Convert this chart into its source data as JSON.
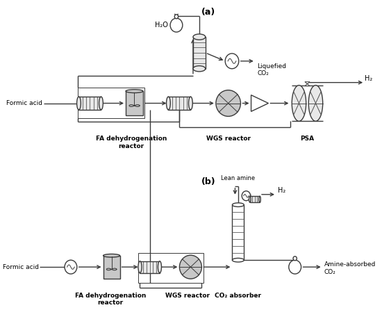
{
  "bg_color": "#ffffff",
  "lc": "#3a3a3a",
  "title_a": "(a)",
  "title_b": "(b)",
  "label_formic_acid": "Formic acid",
  "label_h2o": "H₂O",
  "label_liquefied_co2": "Liquefied\nCO₂",
  "label_h2_a": "H₂",
  "label_h2_b": "H₂",
  "label_lean_amine": "Lean amine",
  "label_amine_absorbed": "Amine-absorbed\nCO₂",
  "label_fa_reactor_a": "FA dehydrogenation\nreactor",
  "label_wgs_a": "WGS reactor",
  "label_psa": "PSA",
  "label_fa_reactor_b": "FA dehydrogenation\nreactor",
  "label_wgs_b": "WGS reactor",
  "label_co2_absorber": "CO₂ absorber",
  "gray_fill": "#c8c8c8",
  "light_fill": "#e8e8e8",
  "white_fill": "#ffffff"
}
